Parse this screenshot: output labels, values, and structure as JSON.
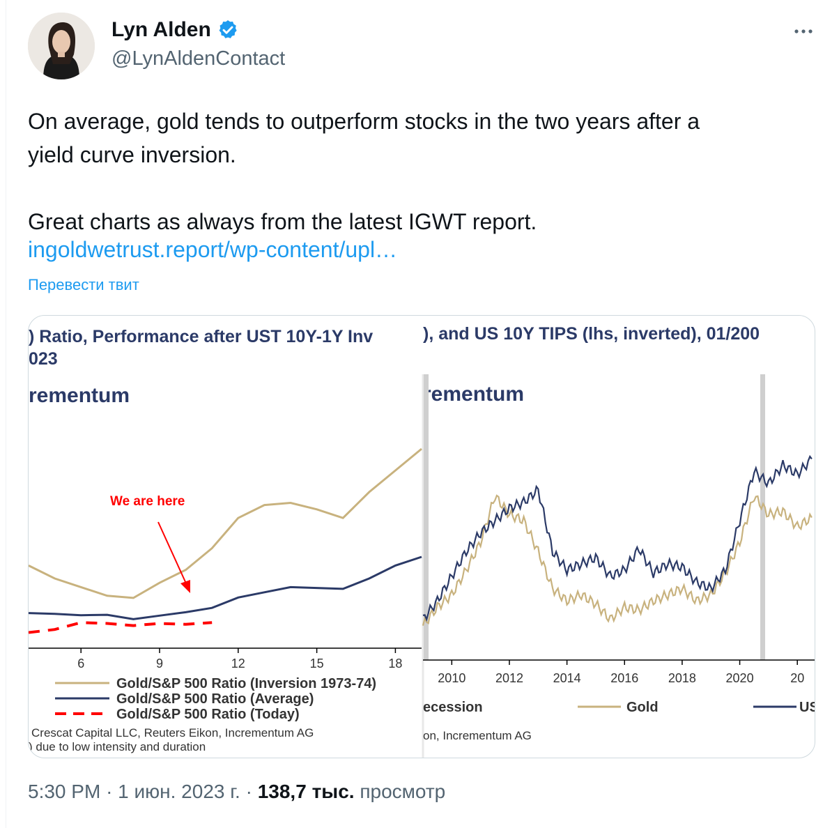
{
  "author": {
    "name": "Lyn Alden",
    "handle": "@LynAldenContact"
  },
  "tweet": {
    "text_line1": "On average, gold tends to outperform stocks in the two years after a",
    "text_line2": "yield curve inversion.",
    "text_para2": "Great charts as always from the latest IGWT report.",
    "link": "ingoldwetrust.report/wp-content/upl…",
    "translate": "Перевести твит"
  },
  "media": {
    "left_panel": {
      "title_line1": ") Ratio, Performance after UST 10Y-1Y Inv",
      "title_line2": "023",
      "brand": "rementum",
      "annotation": "We are here",
      "legend": [
        {
          "label": "Gold/S&P 500 Ratio (Inversion 1973-74)",
          "color": "#c8b27e",
          "dash": "solid"
        },
        {
          "label": "Gold/S&P 500 Ratio (Average)",
          "color": "#2b3a67",
          "dash": "solid"
        },
        {
          "label": "Gold/S&P 500 Ratio (Today)",
          "color": "#ff0000",
          "dash": "dashed"
        }
      ],
      "source_line1": "Crescat Capital LLC, Reuters Eikon, Incrementum AG",
      "source_line2": ") due to low intensity and duration"
    },
    "right_panel": {
      "title": "), and US 10Y TIPS (lhs, inverted), 01/200",
      "brand": "rementum",
      "legend_recession": "ecession",
      "legend_gold": "Gold",
      "legend_us": "US",
      "source": "on, Incrementum AG"
    }
  },
  "chart_data": [
    {
      "type": "line",
      "x_ticks": [
        6,
        9,
        12,
        15,
        18
      ],
      "series": [
        {
          "name": "Gold/S&P 500 Ratio (Inversion 1973-74)",
          "x": [
            4,
            5,
            6,
            7,
            8,
            9,
            10,
            11,
            12,
            13,
            14,
            15,
            16,
            17,
            18,
            19
          ],
          "y": [
            58,
            55,
            53,
            51,
            50.5,
            54,
            57,
            62,
            69,
            72,
            72.5,
            71,
            69,
            75,
            80,
            85
          ]
        },
        {
          "name": "Gold/S&P 500 Ratio (Average)",
          "x": [
            4,
            5,
            6,
            7,
            8,
            9,
            10,
            11,
            12,
            13,
            14,
            15,
            16,
            17,
            18,
            19
          ],
          "y": [
            47,
            46.8,
            46.5,
            46.6,
            45.6,
            46.4,
            47.2,
            48.2,
            50.6,
            51.8,
            53,
            52.8,
            52.6,
            55,
            58,
            60
          ]
        },
        {
          "name": "Gold/S&P 500 Ratio (Today)",
          "x": [
            4,
            5,
            6,
            7,
            8,
            9,
            10,
            11
          ],
          "y": [
            42.5,
            43.2,
            44.8,
            44.6,
            44.1,
            44.6,
            44.4,
            44.8
          ]
        }
      ]
    },
    {
      "type": "line",
      "x_ticks": [
        "2010",
        "2012",
        "2014",
        "2016",
        "2018",
        "2020",
        "20"
      ],
      "series": [
        {
          "name": "Gold",
          "x": [
            2009.0,
            2009.5,
            2010.0,
            2010.5,
            2011.0,
            2011.5,
            2012.0,
            2012.5,
            2013.0,
            2013.5,
            2014.0,
            2014.5,
            2015.0,
            2015.5,
            2016.0,
            2016.5,
            2017.0,
            2017.5,
            2018.0,
            2018.5,
            2019.0,
            2019.5,
            2020.0,
            2020.5,
            2021.0,
            2021.5,
            2022.0,
            2022.5
          ],
          "y": [
            28,
            34,
            38,
            46,
            55,
            70,
            64,
            62,
            52,
            40,
            36,
            38,
            35,
            30,
            34,
            33,
            36,
            38,
            40,
            36,
            38,
            45,
            55,
            70,
            64,
            65,
            60,
            63
          ]
        },
        {
          "name": "US",
          "x": [
            2009.0,
            2009.5,
            2010.0,
            2010.5,
            2011.0,
            2011.5,
            2012.0,
            2012.5,
            2013.0,
            2013.5,
            2014.0,
            2014.5,
            2015.0,
            2015.5,
            2016.0,
            2016.5,
            2017.0,
            2017.5,
            2018.0,
            2018.5,
            2019.0,
            2019.5,
            2020.0,
            2020.5,
            2021.0,
            2021.5,
            2022.0,
            2022.5
          ],
          "y": [
            30,
            36,
            44,
            52,
            58,
            62,
            66,
            68,
            72,
            52,
            46,
            48,
            50,
            44,
            46,
            53,
            45,
            48,
            47,
            42,
            40,
            46,
            62,
            78,
            74,
            80,
            77,
            82
          ]
        }
      ]
    }
  ],
  "footer": {
    "time": "5:30 PM",
    "date": "1 июн. 2023 г.",
    "views_count": "138,7 тыс.",
    "views_label": "просмотр"
  }
}
